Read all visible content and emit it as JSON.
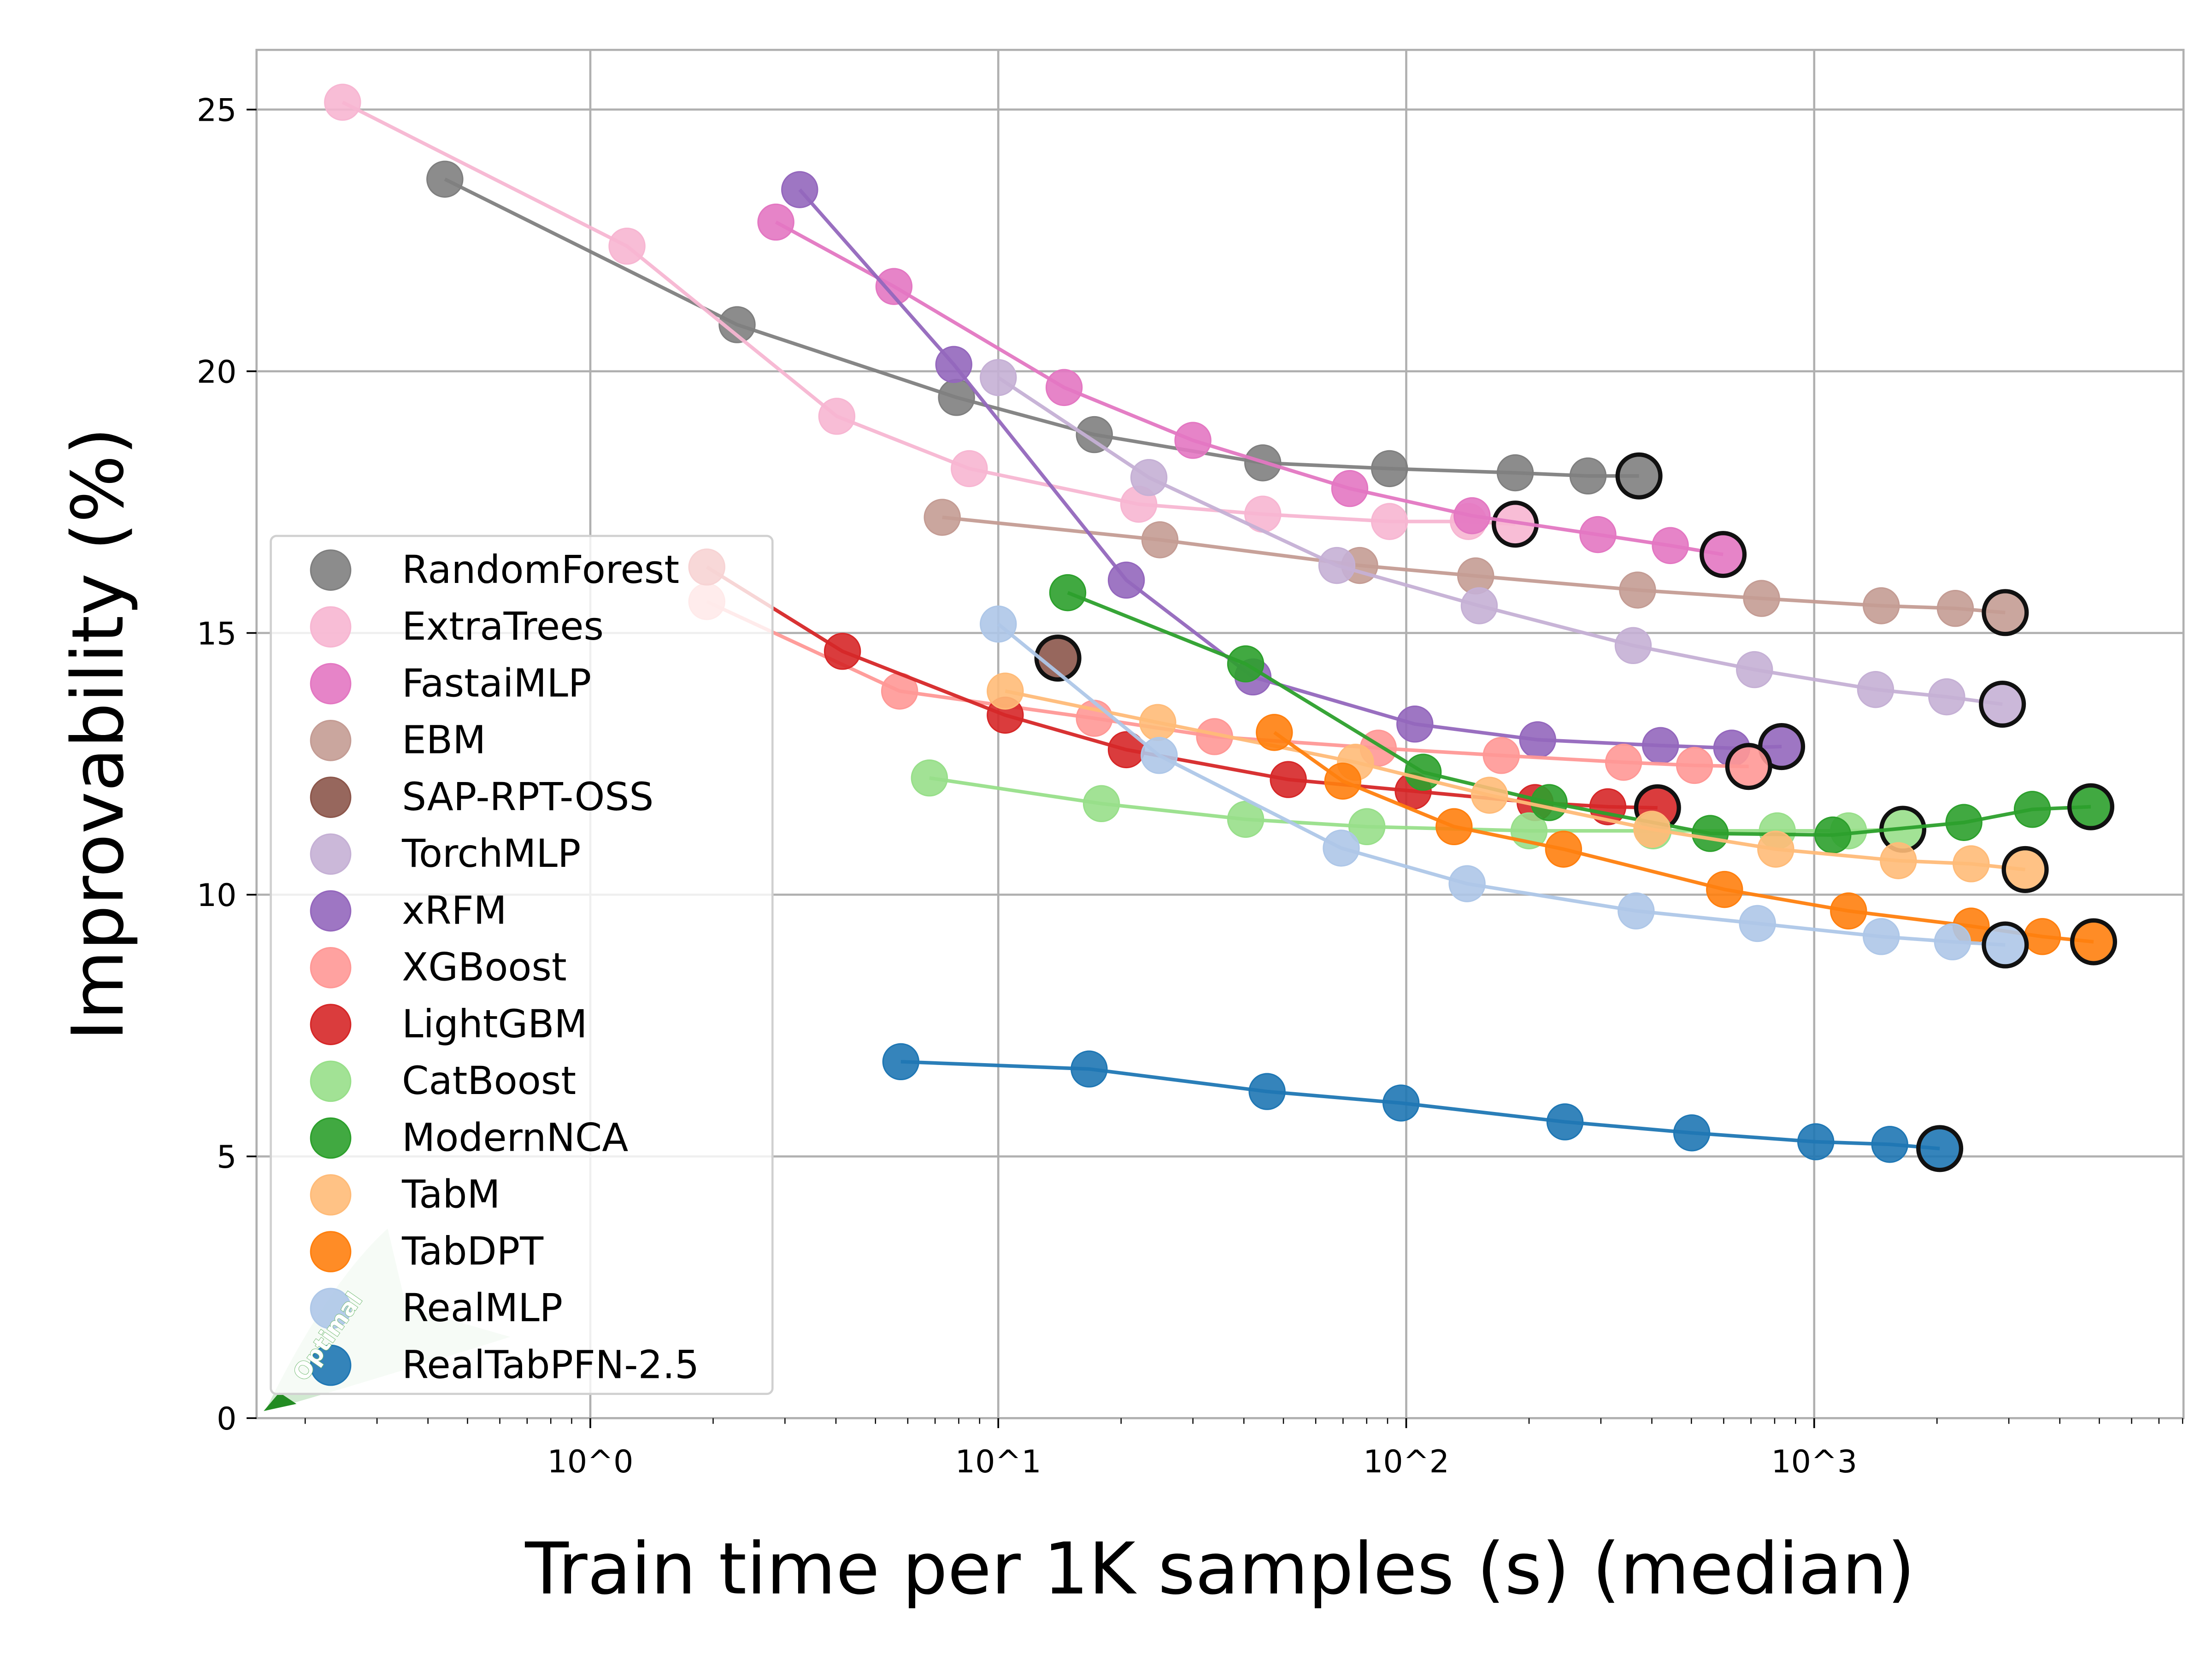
{
  "chart_data": {
    "type": "line",
    "title": "",
    "xlabel": "Train time per 1K samples (s) (median)",
    "ylabel": "Improvability (%)",
    "xscale": "log",
    "xlim": [
      0.152,
      8040
    ],
    "ylim": [
      0,
      26.14
    ],
    "x_ticks": [
      {
        "value": 1,
        "label": "10^0"
      },
      {
        "value": 10,
        "label": "10^1"
      },
      {
        "value": 100,
        "label": "10^2"
      },
      {
        "value": 1000,
        "label": "10^3"
      }
    ],
    "y_ticks": [
      0,
      5,
      10,
      15,
      20,
      25
    ],
    "grid": true,
    "legend_position": "lower-left",
    "annotation": {
      "text": "Optimal",
      "color": "#2ca02c",
      "points_to": "lower-left corner"
    },
    "note_final_point": "last point of each series drawn with black outline",
    "series": [
      {
        "name": "RandomForest",
        "color": "#7f7f7f",
        "x": [
          0.44,
          2.29,
          7.9,
          17.2,
          44.5,
          91,
          185,
          279,
          372
        ],
        "y": [
          23.67,
          20.89,
          19.5,
          18.79,
          18.25,
          18.14,
          18.06,
          18.0,
          18.0
        ]
      },
      {
        "name": "ExtraTrees",
        "color": "#f7b6d2",
        "x": [
          0.247,
          1.23,
          4.02,
          8.49,
          22.1,
          44.5,
          91,
          142,
          185
        ],
        "y": [
          25.14,
          22.39,
          19.14,
          18.14,
          17.46,
          17.27,
          17.13,
          17.13,
          17.08
        ]
      },
      {
        "name": "FastaiMLP",
        "color": "#e377c2",
        "x": [
          2.85,
          5.55,
          14.5,
          30,
          72.7,
          145,
          295,
          444,
          598
        ],
        "y": [
          22.85,
          21.62,
          19.69,
          18.68,
          17.76,
          17.24,
          16.88,
          16.67,
          16.5
        ]
      },
      {
        "name": "EBM",
        "color": "#c49c94",
        "x": [
          7.29,
          24.9,
          76.9,
          148,
          369,
          743,
          1460,
          2218,
          2940
        ],
        "y": [
          17.21,
          16.78,
          16.29,
          16.09,
          15.82,
          15.66,
          15.52,
          15.47,
          15.39
        ]
      },
      {
        "name": "SAP-RPT-OSS",
        "color": "#8c564b",
        "x": [
          14.0
        ],
        "y": [
          14.52
        ]
      },
      {
        "name": "TorchMLP",
        "color": "#c5b0d5",
        "x": [
          10.0,
          23.4,
          67.6,
          151,
          360,
          714,
          1414,
          2113,
          2893
        ],
        "y": [
          19.88,
          17.97,
          16.29,
          15.52,
          14.76,
          14.3,
          13.92,
          13.78,
          13.64
        ]
      },
      {
        "name": "xRFM",
        "color": "#9467bd",
        "x": [
          3.26,
          7.78,
          20.6,
          42.1,
          105,
          210,
          420,
          628,
          832
        ],
        "y": [
          23.47,
          20.13,
          16.01,
          14.16,
          13.26,
          12.96,
          12.85,
          12.8,
          12.83
        ]
      },
      {
        "name": "XGBoost",
        "color": "#ff9896",
        "x": [
          1.93,
          5.73,
          17.2,
          33.9,
          85.4,
          171,
          341,
          509,
          691
        ],
        "y": [
          15.6,
          13.89,
          13.37,
          13.02,
          12.8,
          12.66,
          12.53,
          12.47,
          12.45
        ]
      },
      {
        "name": "LightGBM",
        "color": "#d62728",
        "x": [
          1.93,
          4.15,
          10.4,
          20.6,
          51.4,
          104,
          207,
          312,
          413
        ],
        "y": [
          16.26,
          14.65,
          13.43,
          12.77,
          12.2,
          11.98,
          11.76,
          11.68,
          11.66
        ]
      },
      {
        "name": "CatBoost",
        "color": "#98df8a",
        "x": [
          6.78,
          17.9,
          40.4,
          80.1,
          200,
          403,
          812,
          1214,
          1649
        ],
        "y": [
          12.23,
          11.74,
          11.44,
          11.3,
          11.22,
          11.22,
          11.22,
          11.22,
          11.25
        ]
      },
      {
        "name": "ModernNCA",
        "color": "#2ca02c",
        "x": [
          14.8,
          40.4,
          110,
          224,
          556,
          1111,
          2328,
          3425,
          4765
        ],
        "y": [
          15.77,
          14.41,
          12.34,
          11.76,
          11.17,
          11.14,
          11.38,
          11.63,
          11.68
        ]
      },
      {
        "name": "TabM",
        "color": "#ffbb78",
        "x": [
          10.4,
          24.6,
          75.1,
          160,
          400,
          805,
          1608,
          2425,
          3290
        ],
        "y": [
          13.89,
          13.29,
          12.53,
          11.9,
          11.25,
          10.87,
          10.65,
          10.59,
          10.48
        ]
      },
      {
        "name": "TabDPT",
        "color": "#ff7f0e",
        "x": [
          47.5,
          69.9,
          131,
          243,
          603,
          1214,
          2425,
          3626,
          4840
        ],
        "y": [
          13.1,
          12.17,
          11.3,
          10.87,
          10.1,
          9.69,
          9.4,
          9.2,
          9.1
        ]
      },
      {
        "name": "RealMLP",
        "color": "#aec7e8",
        "x": [
          10.0,
          24.8,
          69.3,
          141,
          366,
          726,
          1460,
          2183,
          2940
        ],
        "y": [
          15.17,
          12.66,
          10.89,
          10.21,
          9.69,
          9.45,
          9.2,
          9.1,
          9.04
        ]
      },
      {
        "name": "RealTabPFN-2.5",
        "color": "#1f77b4",
        "x": [
          5.77,
          16.7,
          45.6,
          97.1,
          245,
          501,
          1009,
          1532,
          2031
        ],
        "y": [
          6.81,
          6.67,
          6.24,
          6.02,
          5.66,
          5.45,
          5.28,
          5.23,
          5.15
        ]
      }
    ]
  }
}
